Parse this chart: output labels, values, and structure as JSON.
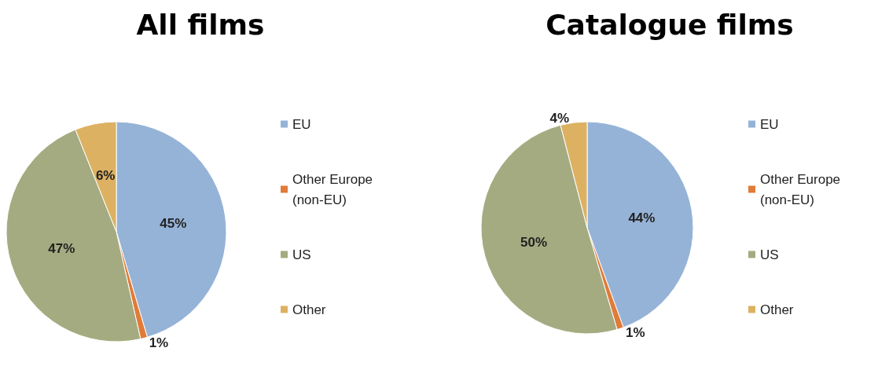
{
  "chart_data": [
    {
      "type": "pie",
      "title": "All films",
      "categories": [
        "EU",
        "Other Europe (non-EU)",
        "US",
        "Other"
      ],
      "values": [
        45,
        1,
        47,
        6
      ],
      "value_labels": [
        "45%",
        "1%",
        "47%",
        "6%"
      ],
      "colors": [
        "#95b3d7",
        "#e07b39",
        "#a5ab80",
        "#dcb162"
      ],
      "legend": "right"
    },
    {
      "type": "pie",
      "title": "Catalogue films",
      "categories": [
        "EU",
        "Other Europe (non-EU)",
        "US",
        "Other"
      ],
      "values": [
        44,
        1,
        50,
        4
      ],
      "value_labels": [
        "44%",
        "1%",
        "50%",
        "4%"
      ],
      "colors": [
        "#95b3d7",
        "#e07b39",
        "#a5ab80",
        "#dcb162"
      ],
      "legend": "right"
    }
  ]
}
